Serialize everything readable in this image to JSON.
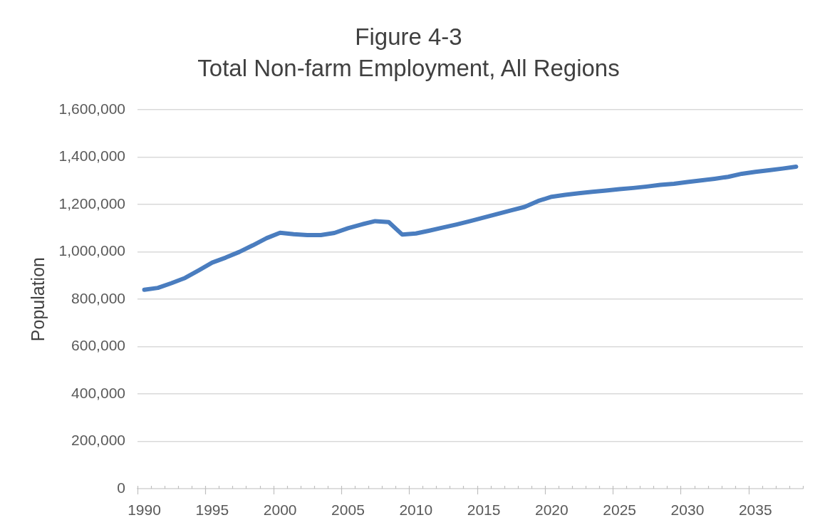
{
  "chart_data": {
    "type": "line",
    "title": "Figure 4-3",
    "subtitle": "Total Non-farm Employment, All Regions",
    "ylabel": "Population",
    "categories": [
      "1990",
      null,
      null,
      null,
      null,
      "1995",
      null,
      null,
      null,
      null,
      "2000",
      null,
      null,
      null,
      null,
      "2005",
      null,
      null,
      null,
      null,
      "2010",
      null,
      null,
      null,
      null,
      "2015",
      null,
      null,
      null,
      null,
      "2020",
      null,
      null,
      null,
      null,
      "2025",
      null,
      null,
      null,
      null,
      "2030",
      null,
      null,
      null,
      null,
      "2035",
      null,
      null,
      null
    ],
    "series": [
      {
        "color": "#4a7dbf",
        "values": [
          840000,
          848000,
          868000,
          890000,
          922000,
          955000,
          976000,
          1000000,
          1028000,
          1058000,
          1081000,
          1075000,
          1071000,
          1071000,
          1080000,
          1100000,
          1116000,
          1130000,
          1126000,
          1073000,
          1078000,
          1090000,
          1103000,
          1116000,
          1130000,
          1145000,
          1160000,
          1175000,
          1190000,
          1215000,
          1233000,
          1241000,
          1248000,
          1254000,
          1259000,
          1265000,
          1270000,
          1276000,
          1283000,
          1288000,
          1295000,
          1302000,
          1309000,
          1317000,
          1330000,
          1338000,
          1345000,
          1352000,
          1360000
        ]
      }
    ],
    "ylim": [
      0,
      1600000
    ],
    "yticks": [
      {
        "value": 0,
        "label": "0"
      },
      {
        "value": 200000,
        "label": "200,000"
      },
      {
        "value": 400000,
        "label": "400,000"
      },
      {
        "value": 600000,
        "label": "600,000"
      },
      {
        "value": 800000,
        "label": "800,000"
      },
      {
        "value": 1000000,
        "label": "1,000,000"
      },
      {
        "value": 1200000,
        "label": "1,200,000"
      },
      {
        "value": 1400000,
        "label": "1,400,000"
      },
      {
        "value": 1600000,
        "label": "1,600,000"
      }
    ],
    "grid": "y"
  }
}
